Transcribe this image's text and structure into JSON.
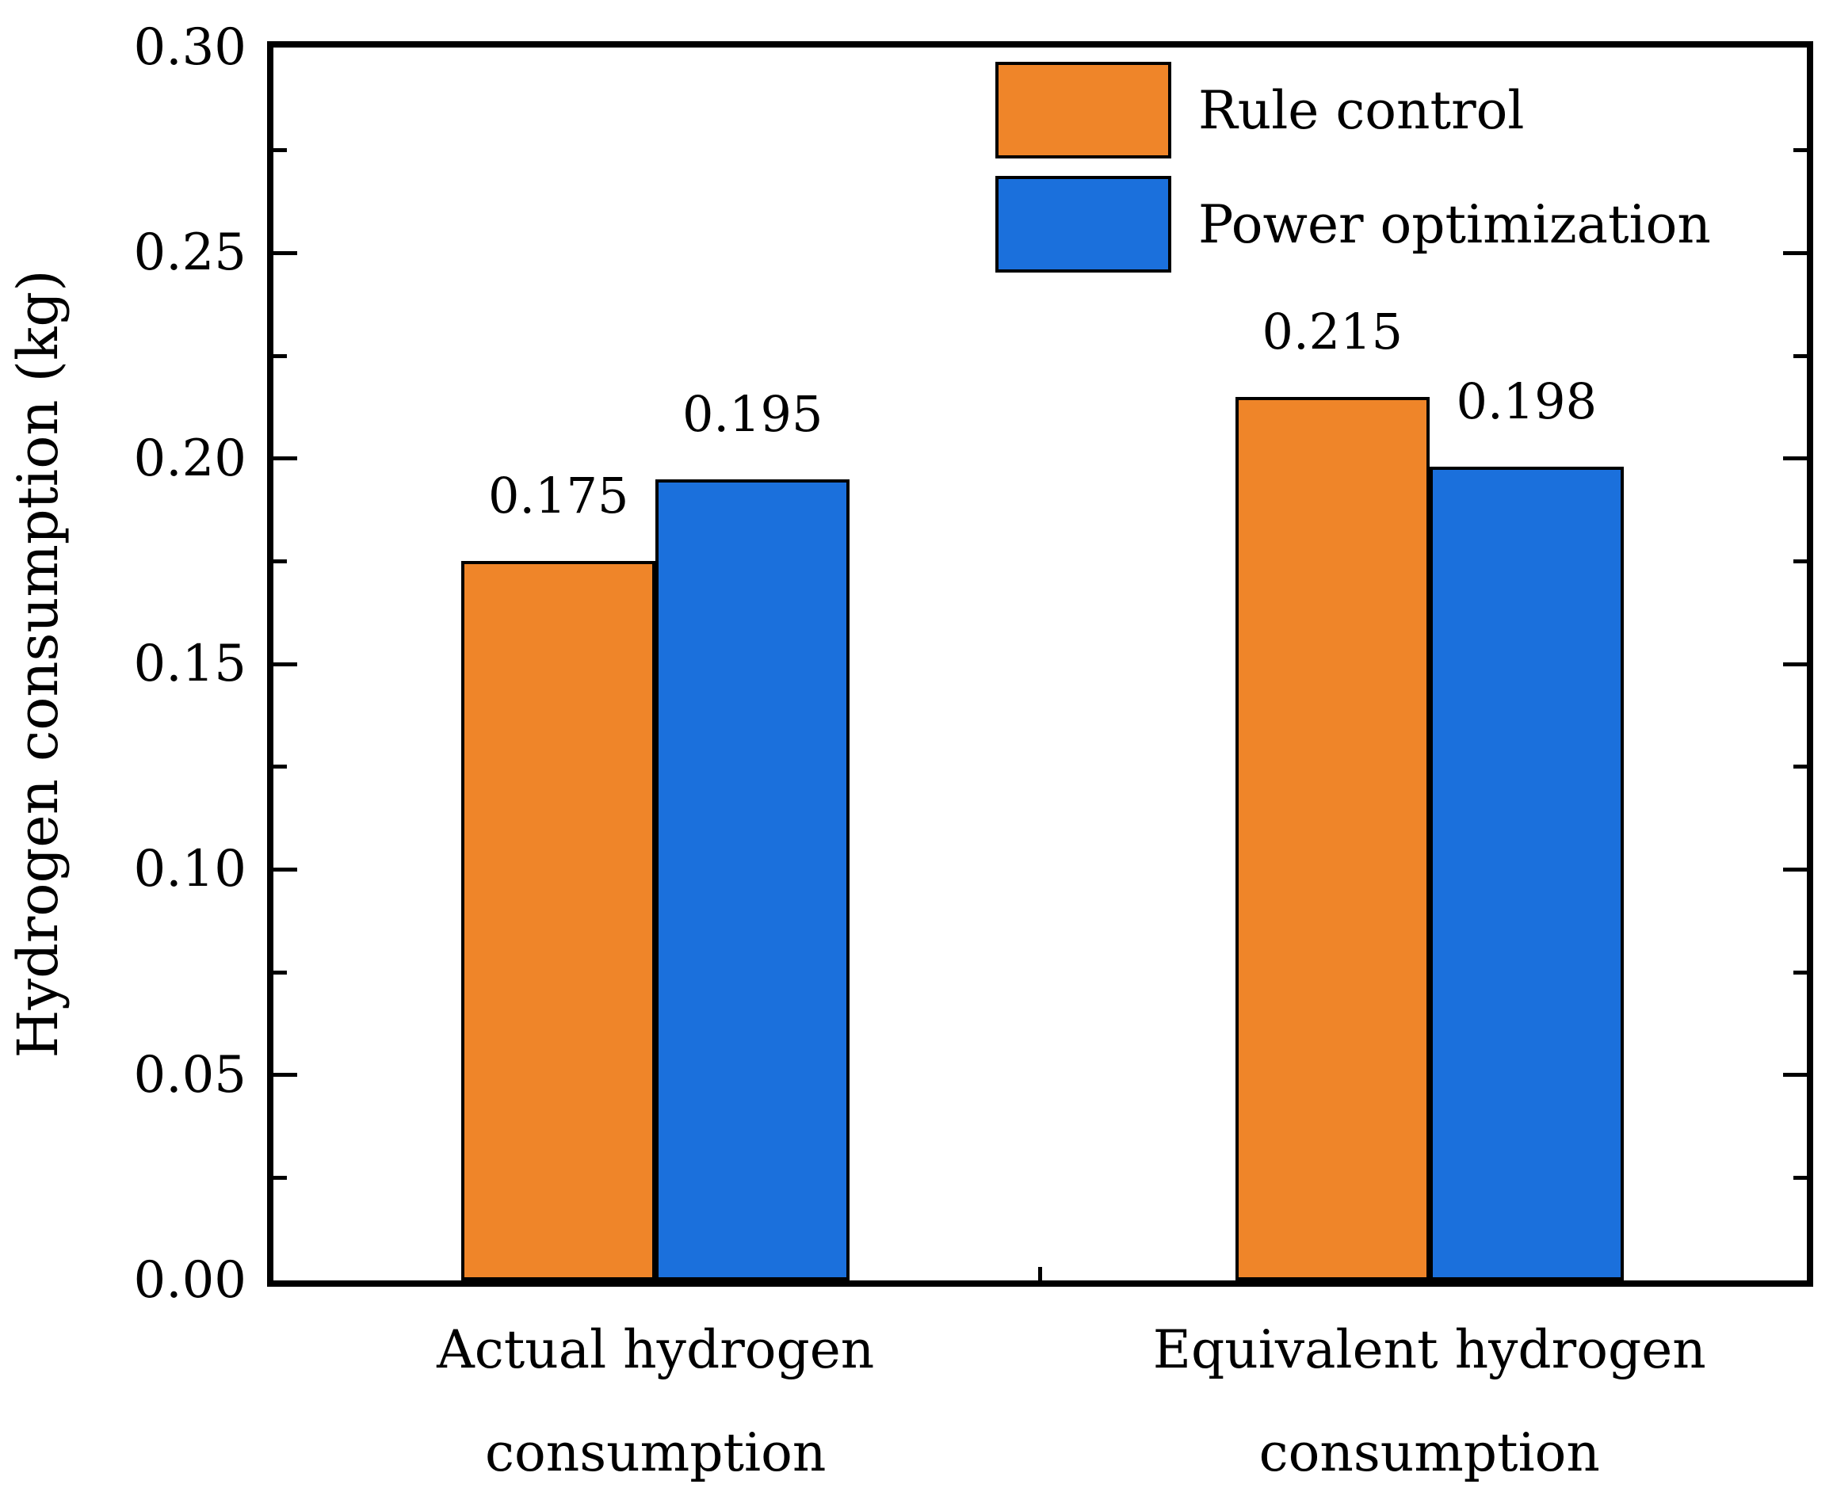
{
  "chart_data": {
    "type": "bar",
    "title": "",
    "ylabel": "Hydrogen consumption (kg)",
    "xlabel": "",
    "ylim": [
      0,
      0.3
    ],
    "ytick_step": 0.05,
    "yminor_step": 0.025,
    "ytick_labels": [
      "0.00",
      "0.05",
      "0.10",
      "0.15",
      "0.20",
      "0.25",
      "0.30"
    ],
    "categories": [
      "Actual hydrogen consumption",
      "Equivalent hydrogen consumption"
    ],
    "category_label_lines": [
      [
        "Actual hydrogen",
        "consumption"
      ],
      [
        "Equivalent hydrogen",
        "consumption"
      ]
    ],
    "series": [
      {
        "name": "Rule control",
        "color": "#EF8529",
        "edge_color": "#000000",
        "values": [
          0.175,
          0.215
        ],
        "value_labels": [
          "0.175",
          "0.215"
        ]
      },
      {
        "name": "Power optimization",
        "color": "#1B70DC",
        "edge_color": "#000000",
        "values": [
          0.195,
          0.198
        ],
        "value_labels": [
          "0.195",
          "0.198"
        ]
      }
    ],
    "legend_position": "top-inside-right",
    "grid": false,
    "frame": true,
    "background": "#ffffff"
  }
}
